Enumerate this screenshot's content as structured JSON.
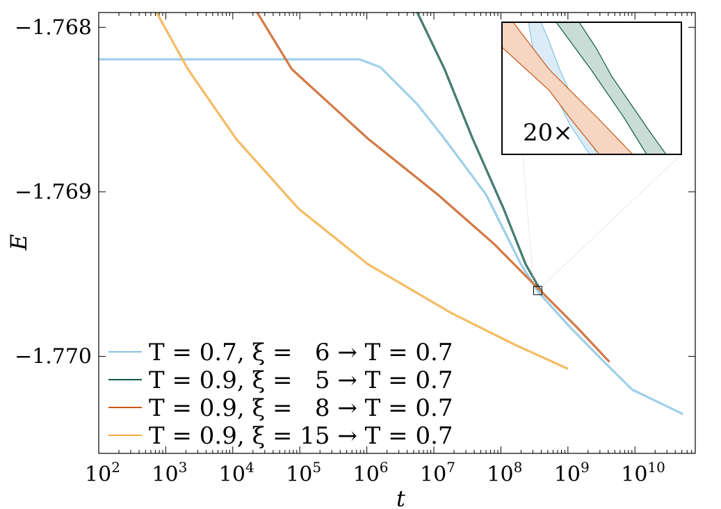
{
  "chart_data": {
    "type": "line",
    "title": "",
    "xlabel": "t",
    "ylabel": "E",
    "xscale": "log",
    "xlim_log10": [
      2,
      10.9
    ],
    "ylim": [
      -1.77059,
      -1.76791
    ],
    "xticks": [
      {
        "exp": 2,
        "label": "10",
        "sup": "2"
      },
      {
        "exp": 3,
        "label": "10",
        "sup": "3"
      },
      {
        "exp": 4,
        "label": "10",
        "sup": "4"
      },
      {
        "exp": 5,
        "label": "10",
        "sup": "5"
      },
      {
        "exp": 6,
        "label": "10",
        "sup": "6"
      },
      {
        "exp": 7,
        "label": "10",
        "sup": "7"
      },
      {
        "exp": 8,
        "label": "10",
        "sup": "8"
      },
      {
        "exp": 9,
        "label": "10",
        "sup": "9"
      },
      {
        "exp": 10,
        "label": "10",
        "sup": "10"
      }
    ],
    "yticks": [
      {
        "value": -1.768,
        "label": "−1.768"
      },
      {
        "value": -1.769,
        "label": "−1.769"
      },
      {
        "value": -1.77,
        "label": "−1.770"
      }
    ],
    "legend_position": "bottom-left",
    "series": [
      {
        "name": "T = 0.7, ξ =   6 → T = 0.7",
        "color": "#86c3e3",
        "log10_t": [
          2,
          5.89,
          6.2,
          6.75,
          7.16,
          7.78,
          8.3,
          8.56,
          9.03,
          9.54,
          9.96,
          10.72
        ],
        "E": [
          -1.768195,
          -1.768195,
          -1.768242,
          -1.768466,
          -1.768678,
          -1.769017,
          -1.769441,
          -1.76961,
          -1.769822,
          -1.770034,
          -1.770203,
          -1.770352
        ]
      },
      {
        "name": "T = 0.9, ξ =   5 → T = 0.7",
        "color": "#12584a",
        "log10_t": [
          6.75,
          7.16,
          7.58,
          8.04,
          8.37,
          8.6
        ],
        "E": [
          -1.767907,
          -1.768254,
          -1.768678,
          -1.769102,
          -1.769441,
          -1.769605
        ]
      },
      {
        "name": "T = 0.9, ξ =   8 → T = 0.7",
        "color": "#c85614",
        "log10_t": [
          4.36,
          4.88,
          6.02,
          7.06,
          7.89,
          8.56,
          9.13,
          9.62
        ],
        "E": [
          -1.767907,
          -1.768254,
          -1.768678,
          -1.769017,
          -1.769314,
          -1.769589,
          -1.769822,
          -1.770034
        ]
      },
      {
        "name": "T = 0.9, ξ = 15 → T = 0.7",
        "color": "#f2aa3c",
        "log10_t": [
          2.86,
          3.33,
          4.05,
          4.98,
          6.02,
          7.26,
          8.2,
          9.0
        ],
        "E": [
          -1.767907,
          -1.768254,
          -1.768678,
          -1.769102,
          -1.769441,
          -1.769737,
          -1.769928,
          -1.770076
        ]
      }
    ],
    "inset": {
      "label": "20×",
      "zoom_center_log10_t": 8.55,
      "zoom_center_E": -1.7696
    }
  }
}
